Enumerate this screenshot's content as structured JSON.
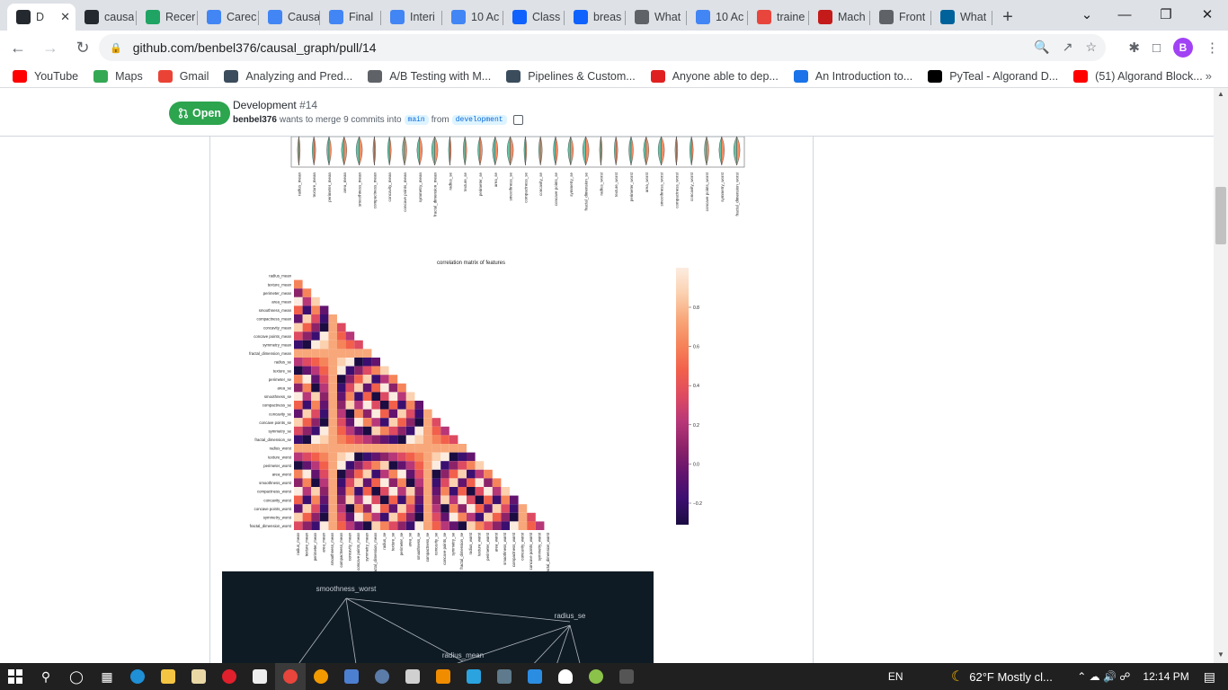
{
  "browser": {
    "tabs": [
      {
        "label": "D",
        "icon": "github-icon",
        "color": "#24292f",
        "active": true
      },
      {
        "label": "causa",
        "icon": "github-icon",
        "color": "#24292f"
      },
      {
        "label": "Recer",
        "icon": "drive-icon",
        "color": "#1fa463"
      },
      {
        "label": "Carec",
        "icon": "docs-icon",
        "color": "#4285f4"
      },
      {
        "label": "Causa",
        "icon": "docs-icon",
        "color": "#4285f4"
      },
      {
        "label": "Final",
        "icon": "docs-icon",
        "color": "#4285f4"
      },
      {
        "label": "Interi",
        "icon": "docs-icon",
        "color": "#4285f4"
      },
      {
        "label": "10 Ac",
        "icon": "docs-icon",
        "color": "#4285f4"
      },
      {
        "label": "Class",
        "icon": "k-icon",
        "color": "#0f62fe"
      },
      {
        "label": "breas",
        "icon": "k-icon",
        "color": "#0f62fe"
      },
      {
        "label": "What",
        "icon": "globe-icon",
        "color": "#5f6368"
      },
      {
        "label": "10 Ac",
        "icon": "docs-icon",
        "color": "#4285f4"
      },
      {
        "label": "traine",
        "icon": "chart-icon",
        "color": "#e8453c"
      },
      {
        "label": "Mach",
        "icon": "s-icon",
        "color": "#c41a1a"
      },
      {
        "label": "Front",
        "icon": "globe-icon",
        "color": "#5f6368"
      },
      {
        "label": "What",
        "icon": "ieee-icon",
        "color": "#00629b"
      }
    ],
    "url": "github.com/benbel376/causal_graph/pull/14",
    "profile_initial": "B",
    "bookmarks": [
      {
        "label": "YouTube",
        "icon": "youtube-icon",
        "color": "#ff0000"
      },
      {
        "label": "Maps",
        "icon": "maps-icon",
        "color": "#34a853"
      },
      {
        "label": "Gmail",
        "icon": "gmail-icon",
        "color": "#ea4335"
      },
      {
        "label": "Analyzing and Pred...",
        "icon": "tds-icon",
        "color": "#3b4c5c"
      },
      {
        "label": "A/B Testing with M...",
        "icon": "globe-icon",
        "color": "#5f6368"
      },
      {
        "label": "Pipelines & Custom...",
        "icon": "tds-icon",
        "color": "#3b4c5c"
      },
      {
        "label": "Anyone able to dep...",
        "icon": "crown-icon",
        "color": "#e02020"
      },
      {
        "label": "An Introduction to...",
        "icon": "compass-icon",
        "color": "#1a73e8"
      },
      {
        "label": "PyTeal - Algorand D...",
        "icon": "algorand-icon",
        "color": "#000000"
      },
      {
        "label": "(51) Algorand Block...",
        "icon": "youtube-icon",
        "color": "#ff0000"
      }
    ]
  },
  "pr": {
    "status": "Open",
    "title": "Development",
    "number": "#14",
    "author": "benbel376",
    "merge_text": "wants to merge 9 commits into",
    "base": "main",
    "from_text": "from",
    "head": "development"
  },
  "violin_labels": [
    "radius_mean",
    "texture_mean",
    "perimeter_mean",
    "area_mean",
    "smoothness_mean",
    "compactness_mean",
    "concavity_mean",
    "concave points_mean",
    "symmetry_mean",
    "fractal_dimension_mean",
    "radius_se",
    "texture_se",
    "perimeter_se",
    "area_se",
    "smoothness_se",
    "compactness_se",
    "concavity_se",
    "concave points_se",
    "symmetry_se",
    "fractal_dimension_se",
    "radius_worst",
    "texture_worst",
    "perimeter_worst",
    "area_worst",
    "smoothness_worst",
    "compactness_worst",
    "concavity_worst",
    "concave points_worst",
    "symmetry_worst",
    "fractal_dimension_worst"
  ],
  "heatmap": {
    "title": "correlation matrix of features",
    "colorbar_ticks": [
      "0.8",
      "0.6",
      "0.4",
      "0.2",
      "0.0",
      "−0.2"
    ],
    "row_labels": [
      "radius_mean",
      "texture_mean",
      "perimeter_mean",
      "area_mean",
      "smoothness_mean",
      "compactness_mean",
      "concavity_mean",
      "concave points_mean",
      "symmetry_mean",
      "fractal_dimension_mean",
      "radius_se",
      "texture_se",
      "perimeter_se",
      "area_se",
      "smoothness_se",
      "compactness_se",
      "concavity_se",
      "concave points_se",
      "symmetry_se",
      "fractal_dimension_se",
      "radius_worst",
      "texture_worst",
      "perimeter_worst",
      "area_worst",
      "smoothness_worst",
      "compactness_worst",
      "concavity_worst",
      "concave points_worst",
      "symmetry_worst",
      "fractal_dimension_worst"
    ]
  },
  "graph": {
    "nodes": [
      "smoothness_worst",
      "radius_se",
      "radius_mean"
    ]
  },
  "taskbar": {
    "language": "EN",
    "weather": "62°F  Mostly cl...",
    "time": "12:14 PM"
  }
}
